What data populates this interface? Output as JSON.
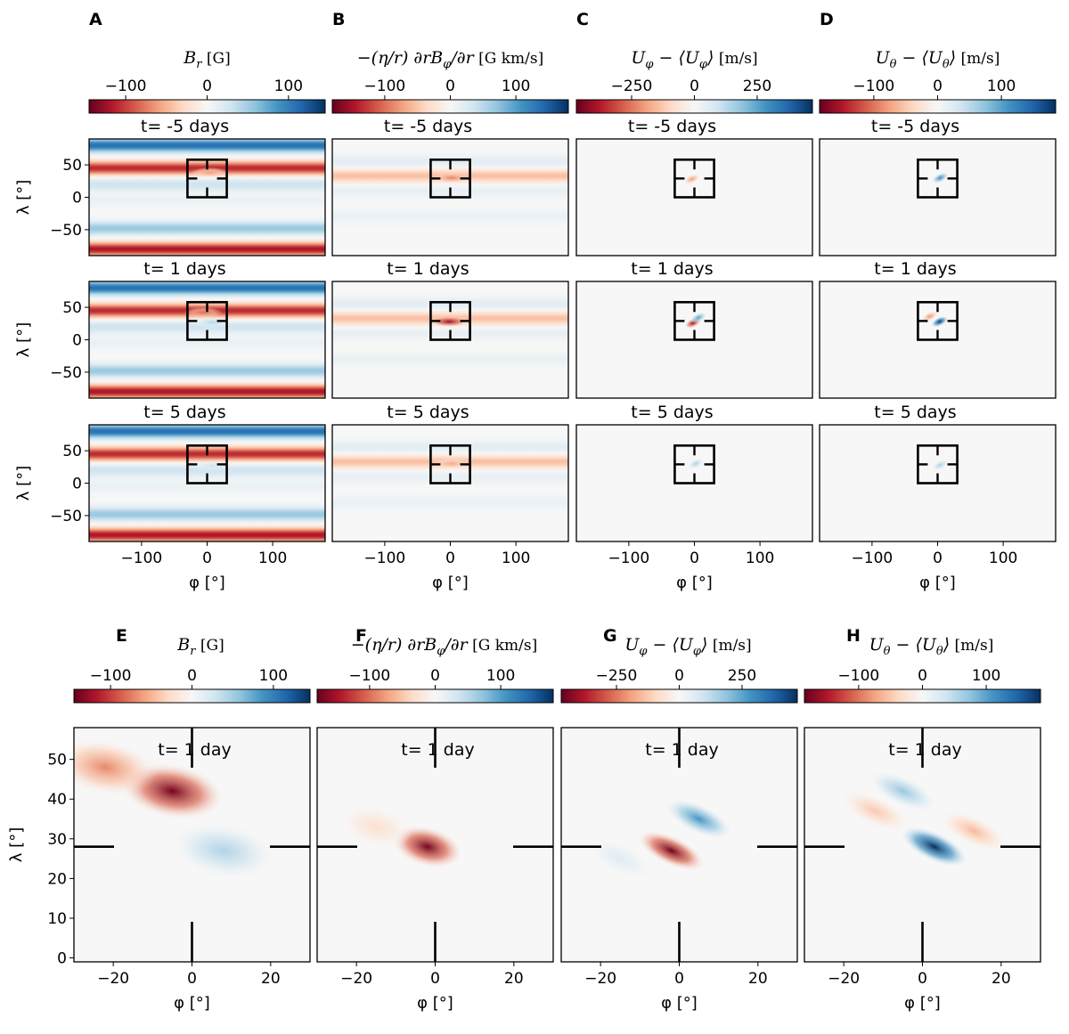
{
  "colormap": {
    "name": "RdBu",
    "stops": [
      "#67001f",
      "#b2182b",
      "#d6604d",
      "#f4a582",
      "#fddbc7",
      "#f7f7f7",
      "#d1e5f0",
      "#92c5de",
      "#4393c3",
      "#2166ac",
      "#053061"
    ]
  },
  "quantities": [
    {
      "id": "br",
      "sym": "B",
      "sub": "r",
      "unit": "[G]",
      "ticks": [
        "−100",
        "0",
        "100"
      ],
      "tick_values": [
        -100,
        0,
        100
      ],
      "range": [
        -145,
        145
      ]
    },
    {
      "id": "emf",
      "sym": "−(η/r) ∂rB",
      "sub": "φ",
      "extra": "/∂r",
      "unit": "[G km/s]",
      "ticks": [
        "−100",
        "0",
        "100"
      ],
      "tick_values": [
        -100,
        0,
        100
      ],
      "range": [
        -180,
        180
      ]
    },
    {
      "id": "uphi",
      "sym": "U",
      "sub": "φ",
      "extra": " − ⟨U",
      "sub2": "φ",
      "extra2": "⟩",
      "unit": "[m/s]",
      "ticks": [
        "−250",
        "0",
        "250"
      ],
      "tick_values": [
        -250,
        0,
        250
      ],
      "range": [
        -470,
        470
      ]
    },
    {
      "id": "utheta",
      "sym": "U",
      "sub": "θ",
      "extra": " − ⟨U",
      "sub2": "θ",
      "extra2": "⟩",
      "unit": "[m/s]",
      "ticks": [
        "−100",
        "0",
        "100"
      ],
      "tick_values": [
        -100,
        0,
        100
      ],
      "range": [
        -185,
        185
      ]
    }
  ],
  "top": {
    "panel_letters": [
      "A",
      "B",
      "C",
      "D"
    ],
    "row_titles": [
      "t= -5 days",
      "t= 1 days",
      "t= 5 days"
    ],
    "ylabel": "λ [°]",
    "xlabel": "φ [°]",
    "xlim": [
      -180,
      180
    ],
    "ylim": [
      -90,
      90
    ],
    "xticks": [
      -100,
      0,
      100
    ],
    "yticks": [
      50,
      0,
      -50
    ],
    "box": {
      "phi": [
        -30,
        30
      ],
      "lat": [
        0,
        58
      ]
    }
  },
  "bottom": {
    "panel_letters": [
      "E",
      "F",
      "G",
      "H"
    ],
    "title": "t= 1 day",
    "ylabel": "λ [°]",
    "xlabel": "φ [°]",
    "xlim": [
      -30,
      30
    ],
    "ylim": [
      -1,
      58
    ],
    "xticks": [
      -20,
      0,
      20
    ],
    "yticks": [
      50,
      40,
      30,
      20,
      10,
      0
    ],
    "crosshair": {
      "phi": 0,
      "lat": 28
    }
  },
  "chart_data": [
    {
      "type": "heatmap",
      "panels": [
        "A",
        "B",
        "C",
        "D"
      ],
      "series": [
        {
          "name": "B_r [G]",
          "clim": [
            -145,
            145
          ]
        },
        {
          "name": "-(eta/r) d(rB_phi)/dr [G km/s]",
          "clim": [
            -180,
            180
          ]
        },
        {
          "name": "U_phi - <U_phi> [m/s]",
          "clim": [
            -470,
            470
          ]
        },
        {
          "name": "U_theta - <U_theta> [m/s]",
          "clim": [
            -185,
            185
          ]
        }
      ],
      "rows": [
        "t= -5 days",
        "t= 1 days",
        "t= 5 days"
      ],
      "x": {
        "label": "phi [deg]",
        "range": [
          -180,
          180
        ],
        "ticks": [
          -100,
          0,
          100
        ]
      },
      "y": {
        "label": "lambda [deg]",
        "range": [
          -90,
          90
        ],
        "ticks": [
          -50,
          0,
          50
        ]
      },
      "features": {
        "B_r": {
          "bands": [
            {
              "lat": 80,
              "value": 110
            },
            {
              "lat": 45,
              "value": -110
            },
            {
              "lat": 20,
              "value": 30
            },
            {
              "lat": -5,
              "value": 10
            },
            {
              "lat": -48,
              "value": 55
            },
            {
              "lat": -80,
              "value": -120
            }
          ],
          "spots": [
            {
              "row": 0,
              "phi": 4,
              "lat": 38,
              "value": -60
            },
            {
              "row": 1,
              "phi": -6,
              "lat": 42,
              "value": -80
            },
            {
              "row": 1,
              "phi": 8,
              "lat": 27,
              "value": 40
            },
            {
              "row": 2,
              "phi": 8,
              "lat": 27,
              "value": 30
            }
          ]
        },
        "emf": {
          "bands": [
            {
              "lat": 33,
              "value": -55
            },
            {
              "lat": 55,
              "value": 20
            },
            {
              "lat": 10,
              "value": 15
            },
            {
              "lat": -30,
              "value": 12
            }
          ],
          "spots": [
            {
              "row": 0,
              "phi": 2,
              "lat": 30,
              "value": -90
            },
            {
              "row": 1,
              "phi": -2,
              "lat": 28,
              "value": -160
            },
            {
              "row": 2,
              "phi": 2,
              "lat": 30,
              "value": -70
            }
          ]
        },
        "uphi": {
          "spots": [
            {
              "row": 1,
              "phi": -2,
              "lat": 26,
              "value": -420
            },
            {
              "row": 1,
              "phi": 6,
              "lat": 34,
              "value": 260
            },
            {
              "row": 0,
              "phi": -4,
              "lat": 28,
              "value": -200
            },
            {
              "row": 2,
              "phi": 2,
              "lat": 30,
              "value": 150
            }
          ]
        },
        "utheta": {
          "spots": [
            {
              "row": 1,
              "phi": 3,
              "lat": 28,
              "value": 180
            },
            {
              "row": 1,
              "phi": -12,
              "lat": 36,
              "value": -80
            },
            {
              "row": 0,
              "phi": 4,
              "lat": 30,
              "value": 120
            },
            {
              "row": 2,
              "phi": 4,
              "lat": 28,
              "value": 60
            }
          ]
        }
      }
    },
    {
      "type": "heatmap",
      "panels": [
        "E",
        "F",
        "G",
        "H"
      ],
      "title": "t= 1 day",
      "x": {
        "label": "phi [deg]",
        "range": [
          -30,
          30
        ],
        "ticks": [
          -20,
          0,
          20
        ]
      },
      "y": {
        "label": "lambda [deg]",
        "range": [
          -1,
          58
        ],
        "ticks": [
          0,
          10,
          20,
          30,
          40,
          50
        ]
      },
      "features": {
        "B_r": [
          {
            "phi": -5,
            "lat": 42,
            "value": -140
          },
          {
            "phi": -22,
            "lat": 48,
            "value": -70
          },
          {
            "phi": 8,
            "lat": 27,
            "value": 45
          }
        ],
        "emf": [
          {
            "phi": -2,
            "lat": 28,
            "value": -175
          },
          {
            "phi": -15,
            "lat": 33,
            "value": -30
          }
        ],
        "uphi": [
          {
            "phi": -2,
            "lat": 27,
            "value": -460
          },
          {
            "phi": 5,
            "lat": 35,
            "value": 280
          },
          {
            "phi": -15,
            "lat": 25,
            "value": 60
          }
        ],
        "utheta": [
          {
            "phi": 3,
            "lat": 28,
            "value": 185
          },
          {
            "phi": -5,
            "lat": 42,
            "value": 70
          },
          {
            "phi": -12,
            "lat": 37,
            "value": -50
          },
          {
            "phi": 13,
            "lat": 32,
            "value": -60
          }
        ]
      }
    }
  ]
}
